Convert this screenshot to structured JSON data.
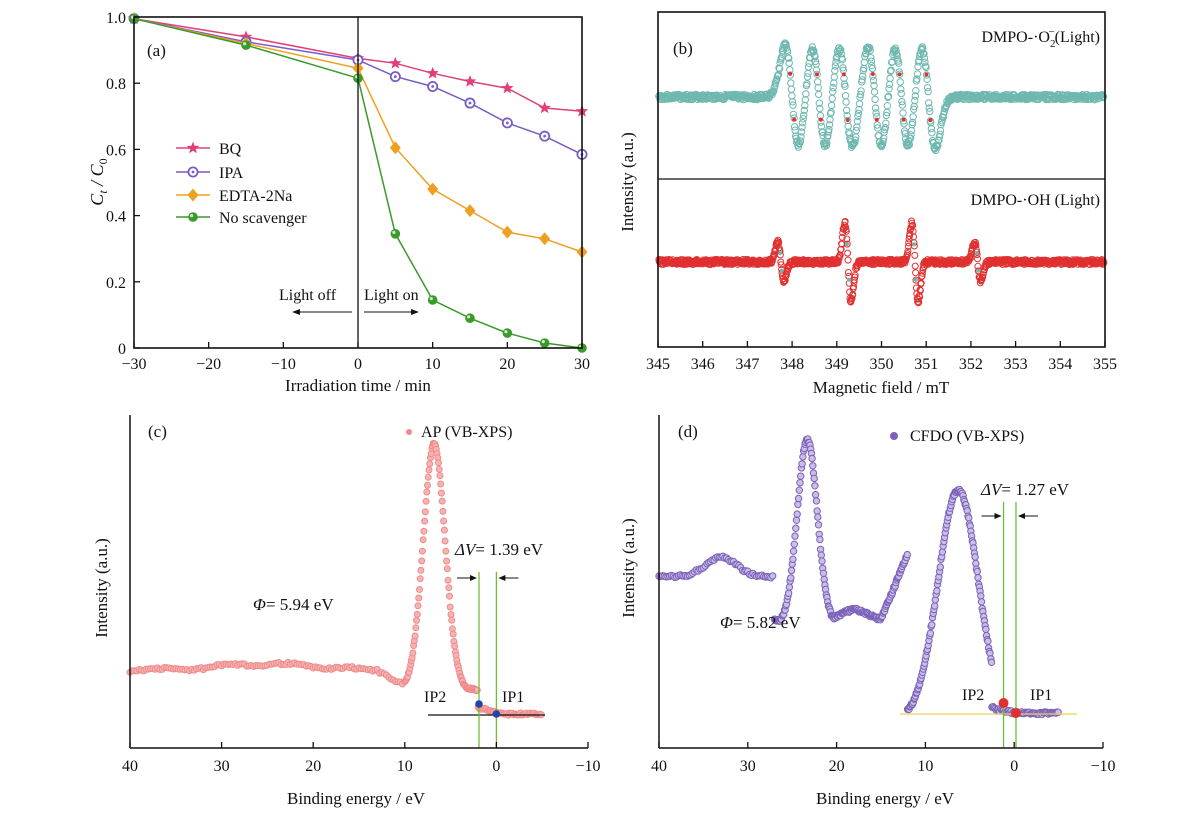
{
  "chart_data": [
    {
      "panel": "(a)",
      "type": "line",
      "xlabel": "Irradiation time / min",
      "ylabel_main": "C",
      "ylabel_sub_t": "t",
      "ylabel_slash": " / C",
      "ylabel_sub_0": "0",
      "xlim": [
        -30,
        30
      ],
      "ylim": [
        0,
        1.0
      ],
      "xticks": [
        -30,
        -20,
        -10,
        0,
        10,
        20,
        30
      ],
      "yticks": [
        0,
        0.2,
        0.4,
        0.6,
        0.8,
        1.0
      ],
      "xtick_labels": [
        "−30",
        "−20",
        "−10",
        "0",
        "10",
        "20",
        "30"
      ],
      "ytick_labels": [
        "0",
        "0.2",
        "0.4",
        "0.6",
        "0.8",
        "1.0"
      ],
      "annotations": {
        "light_off": "Light off",
        "light_on": "Light on"
      },
      "series": [
        {
          "name": "BQ",
          "color": "#e0407a",
          "marker": "star",
          "x": [
            -30,
            -15,
            0,
            5,
            10,
            15,
            20,
            25,
            30
          ],
          "values": [
            0.995,
            0.94,
            0.875,
            0.86,
            0.83,
            0.805,
            0.785,
            0.725,
            0.715
          ]
        },
        {
          "name": "IPA",
          "color": "#7b5cc4",
          "marker": "circle-open",
          "x": [
            -30,
            -15,
            0,
            5,
            10,
            15,
            20,
            25,
            30
          ],
          "values": [
            0.995,
            0.925,
            0.87,
            0.82,
            0.79,
            0.74,
            0.68,
            0.64,
            0.585
          ]
        },
        {
          "name": "EDTA-2Na",
          "color": "#f0a020",
          "marker": "diamond",
          "x": [
            -30,
            -15,
            0,
            5,
            10,
            15,
            20,
            25,
            30
          ],
          "values": [
            0.995,
            0.92,
            0.845,
            0.605,
            0.48,
            0.415,
            0.35,
            0.33,
            0.29
          ]
        },
        {
          "name": "No scavenger",
          "color": "#3a9a2a",
          "marker": "circle",
          "x": [
            -30,
            -15,
            0,
            5,
            10,
            15,
            20,
            25,
            30
          ],
          "values": [
            0.995,
            0.915,
            0.815,
            0.345,
            0.145,
            0.09,
            0.045,
            0.015,
            0.0
          ]
        }
      ]
    },
    {
      "panel": "(b)",
      "type": "line",
      "xlabel": "Magnetic field / mT",
      "ylabel": "Intensity (a.u.)",
      "xlim": [
        345,
        355
      ],
      "xticks": [
        345,
        346,
        347,
        348,
        349,
        350,
        351,
        352,
        353,
        354,
        355
      ],
      "xtick_labels": [
        "345",
        "346",
        "347",
        "348",
        "349",
        "350",
        "351",
        "352",
        "353",
        "354",
        "355"
      ],
      "series": [
        {
          "name_main": "DMPO-·O",
          "name_sub": "2",
          "name_sup": "−",
          "name_tail": "(Light)",
          "color": "#6fb8b0",
          "highlight_color": "#e03030",
          "lines": [
            {
              "x": 348.0,
              "amp": 1.0,
              "width": 0.22
            },
            {
              "x": 348.6,
              "amp": 1.0,
              "width": 0.22
            },
            {
              "x": 349.2,
              "amp": 1.0,
              "width": 0.22
            },
            {
              "x": 349.85,
              "amp": 1.0,
              "width": 0.22
            },
            {
              "x": 350.45,
              "amp": 1.0,
              "width": 0.22
            },
            {
              "x": 351.05,
              "amp": 1.0,
              "width": 0.22
            }
          ]
        },
        {
          "name": "DMPO-·OH (Light)",
          "color": "#e03030",
          "highlight_color": "#6fb8b0",
          "lines": [
            {
              "x": 347.75,
              "amp": 0.5,
              "width": 0.1
            },
            {
              "x": 349.25,
              "amp": 1.0,
              "width": 0.1
            },
            {
              "x": 350.75,
              "amp": 1.0,
              "width": 0.1
            },
            {
              "x": 352.15,
              "amp": 0.5,
              "width": 0.1
            }
          ]
        }
      ]
    },
    {
      "panel": "(c)",
      "type": "scatter",
      "xlabel": "Binding energy / eV",
      "ylabel": "Intensity (a.u.)",
      "xlim": [
        40,
        -10
      ],
      "xticks": [
        40,
        30,
        20,
        10,
        0,
        -10
      ],
      "xtick_labels": [
        "40",
        "30",
        "20",
        "10",
        "0",
        "−10"
      ],
      "legend": "AP (VB-XPS)",
      "color": "#f08a8a",
      "peak_center": 6.8,
      "phi_label": "= 5.94 eV",
      "phi_symbol": "Φ",
      "delta_label": "= 1.39 eV",
      "delta_symbol": "ΔV",
      "ip1": {
        "label": "IP1",
        "x": 0.0
      },
      "ip2": {
        "label": "IP2",
        "x": 1.9
      }
    },
    {
      "panel": "(d)",
      "type": "scatter",
      "xlabel": "Binding energy / eV",
      "ylabel": "Intensity (a.u.)",
      "xlim": [
        40,
        -10
      ],
      "xticks": [
        40,
        30,
        20,
        10,
        0,
        -10
      ],
      "xtick_labels": [
        "40",
        "30",
        "20",
        "10",
        "0",
        "−10"
      ],
      "legend": "CFDO (VB-XPS)",
      "color": "#7a62b8",
      "phi_label": "= 5.82 eV",
      "phi_symbol": "Φ",
      "delta_label": "= 1.27 eV",
      "delta_symbol": "ΔV",
      "ip1": {
        "label": "IP1",
        "x": -0.2
      },
      "ip2": {
        "label": "IP2",
        "x": 1.2
      }
    }
  ]
}
